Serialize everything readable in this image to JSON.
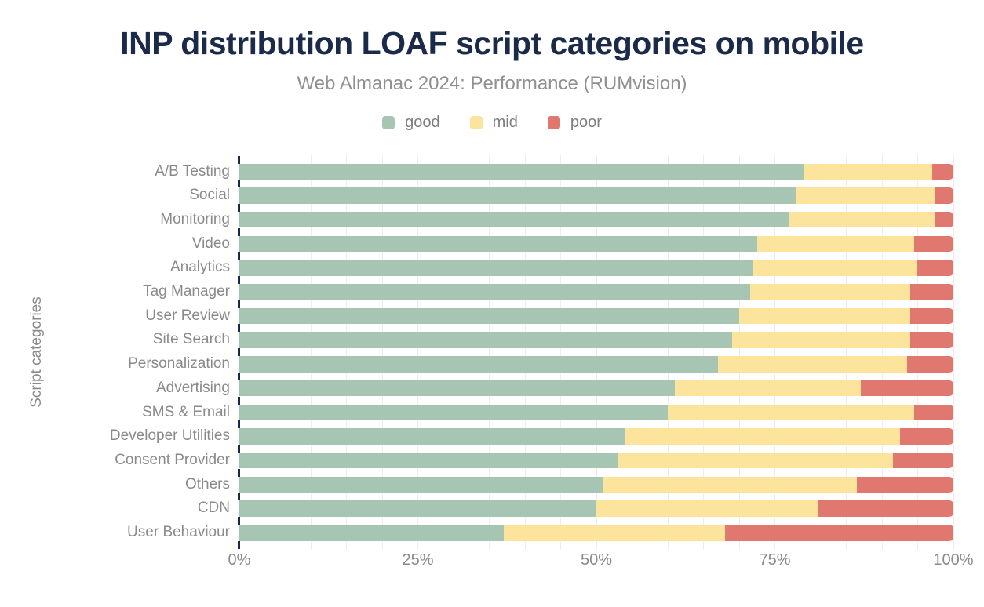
{
  "header": {
    "title": "INP distribution LOAF script categories on mobile",
    "subtitle": "Web Almanac 2024: Performance (RUMvision)"
  },
  "colors": {
    "title": "#1b2a49",
    "axis_tick": "#1b2a49",
    "label_gray": "#8a8a8a",
    "gridline": "#ededed",
    "good": "#a6c6b3",
    "mid": "#fce49d",
    "poor": "#e1786f"
  },
  "chart_data": {
    "type": "bar",
    "stacked": true,
    "orientation": "horizontal",
    "title": "INP distribution LOAF script categories on mobile",
    "subtitle": "Web Almanac 2024: Performance (RUMvision)",
    "xlabel": "",
    "ylabel": "Script categories",
    "xlim": [
      0,
      100
    ],
    "x_ticks": [
      {
        "label": "0%",
        "value": 0
      },
      {
        "label": "25%",
        "value": 25
      },
      {
        "label": "50%",
        "value": 50
      },
      {
        "label": "75%",
        "value": 75
      },
      {
        "label": "100%",
        "value": 100
      }
    ],
    "grid": {
      "vertical": true,
      "step_percent": 5
    },
    "legend_position": "top",
    "units": "percent",
    "categories": [
      "A/B Testing",
      "Social",
      "Monitoring",
      "Video",
      "Analytics",
      "Tag Manager",
      "User Review",
      "Site Search",
      "Personalization",
      "Advertising",
      "SMS & Email",
      "Developer Utilities",
      "Consent Provider",
      "Others",
      "CDN",
      "User Behaviour"
    ],
    "series": [
      {
        "name": "good",
        "color": "#a6c6b3",
        "values": [
          79,
          78,
          77,
          72.5,
          72,
          71.5,
          70,
          69,
          67,
          61,
          60,
          54,
          53,
          51,
          50,
          37
        ]
      },
      {
        "name": "mid",
        "color": "#fce49d",
        "values": [
          18,
          19.5,
          20.5,
          22,
          23,
          22.5,
          24,
          25,
          26.5,
          26,
          34.5,
          38.5,
          38.5,
          35.5,
          31,
          31
        ]
      },
      {
        "name": "poor",
        "color": "#e1786f",
        "values": [
          3,
          2.5,
          2.5,
          5.5,
          5,
          6,
          6,
          6,
          6.5,
          13,
          5.5,
          7.5,
          8.5,
          13.5,
          19,
          32
        ]
      }
    ]
  }
}
